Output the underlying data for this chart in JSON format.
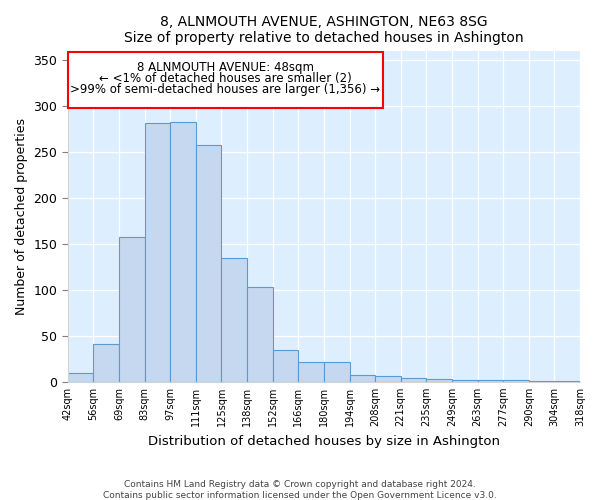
{
  "title": "8, ALNMOUTH AVENUE, ASHINGTON, NE63 8SG",
  "subtitle": "Size of property relative to detached houses in Ashington",
  "xlabel": "Distribution of detached houses by size in Ashington",
  "ylabel": "Number of detached properties",
  "categories": [
    "42sqm",
    "56sqm",
    "69sqm",
    "83sqm",
    "97sqm",
    "111sqm",
    "125sqm",
    "138sqm",
    "152sqm",
    "166sqm",
    "180sqm",
    "194sqm",
    "208sqm",
    "221sqm",
    "235sqm",
    "249sqm",
    "263sqm",
    "277sqm",
    "290sqm",
    "304sqm",
    "318sqm"
  ],
  "values": [
    10,
    41,
    157,
    281,
    282,
    257,
    134,
    103,
    35,
    21,
    22,
    7,
    6,
    4,
    3,
    2,
    2,
    2,
    1,
    1
  ],
  "bar_color": "#c5d8f0",
  "bar_edge_color": "#5b9bd5",
  "ylim": [
    0,
    360
  ],
  "yticks": [
    0,
    50,
    100,
    150,
    200,
    250,
    300,
    350
  ],
  "annotation_box_text_line1": "8 ALNMOUTH AVENUE: 48sqm",
  "annotation_box_text_line2": "← <1% of detached houses are smaller (2)",
  "annotation_box_text_line3": ">99% of semi-detached houses are larger (1,356) →",
  "annotation_box_color": "red",
  "annotation_box_facecolor": "white",
  "footer_line1": "Contains HM Land Registry data © Crown copyright and database right 2024.",
  "footer_line2": "Contains public sector information licensed under the Open Government Licence v3.0.",
  "fig_bg_color": "#ffffff",
  "plot_bg_color": "#ddeeff"
}
